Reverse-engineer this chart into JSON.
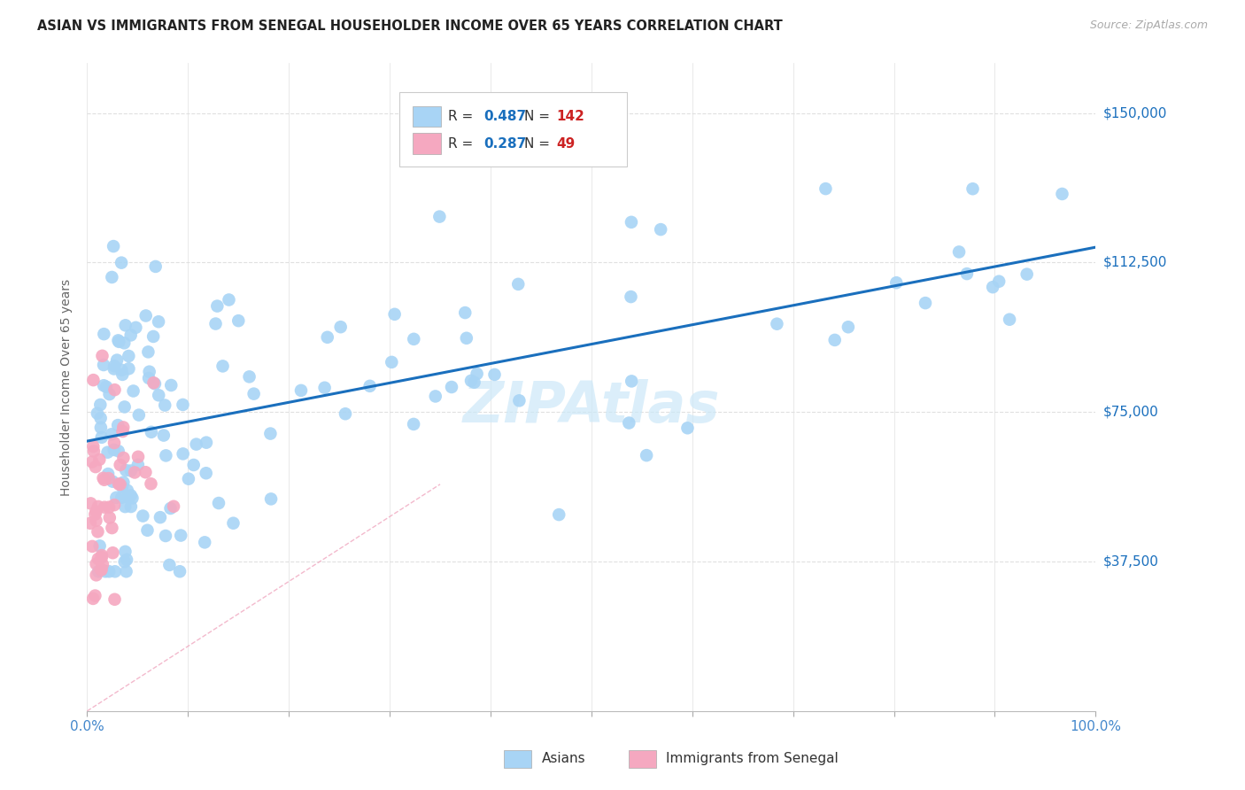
{
  "title": "ASIAN VS IMMIGRANTS FROM SENEGAL HOUSEHOLDER INCOME OVER 65 YEARS CORRELATION CHART",
  "source": "Source: ZipAtlas.com",
  "ylabel": "Householder Income Over 65 years",
  "ytick_labels": [
    "$37,500",
    "$75,000",
    "$112,500",
    "$150,000"
  ],
  "ytick_values": [
    37500,
    75000,
    112500,
    150000
  ],
  "ymin": 0,
  "ymax": 162500,
  "xmin": 0.0,
  "xmax": 1.0,
  "legend_asian_r": "0.487",
  "legend_asian_n": "142",
  "legend_senegal_r": "0.287",
  "legend_senegal_n": "49",
  "color_asian": "#a8d4f5",
  "color_senegal": "#f5a8c0",
  "color_trendline_asian": "#1a6fbd",
  "color_diagonal": "#ddbbcc",
  "color_r_value": "#1a6fbd",
  "color_n_value": "#cc2222",
  "watermark_color": "#cce8f8",
  "background": "#ffffff",
  "grid_color": "#e0e0e0"
}
